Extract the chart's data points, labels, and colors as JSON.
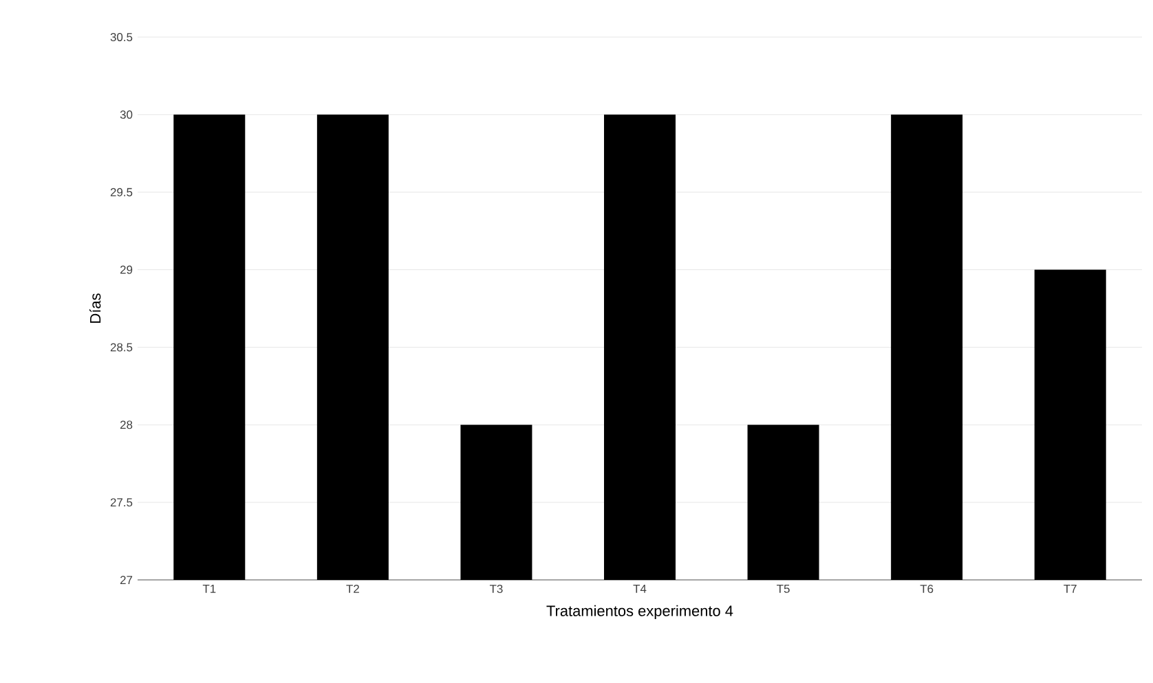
{
  "chart_data": {
    "type": "bar",
    "xlabel": "Tratamientos experimento 4",
    "ylabel": "Días",
    "categories": [
      "T1",
      "T2",
      "T3",
      "T4",
      "T5",
      "T6",
      "T7"
    ],
    "values": [
      30,
      30,
      28,
      30,
      28,
      30,
      29
    ],
    "color": "#000000",
    "ylim": [
      27,
      30.5
    ],
    "yticks": [
      27,
      27.5,
      28,
      28.5,
      29,
      29.5,
      30,
      30.5
    ],
    "grid": "y"
  }
}
